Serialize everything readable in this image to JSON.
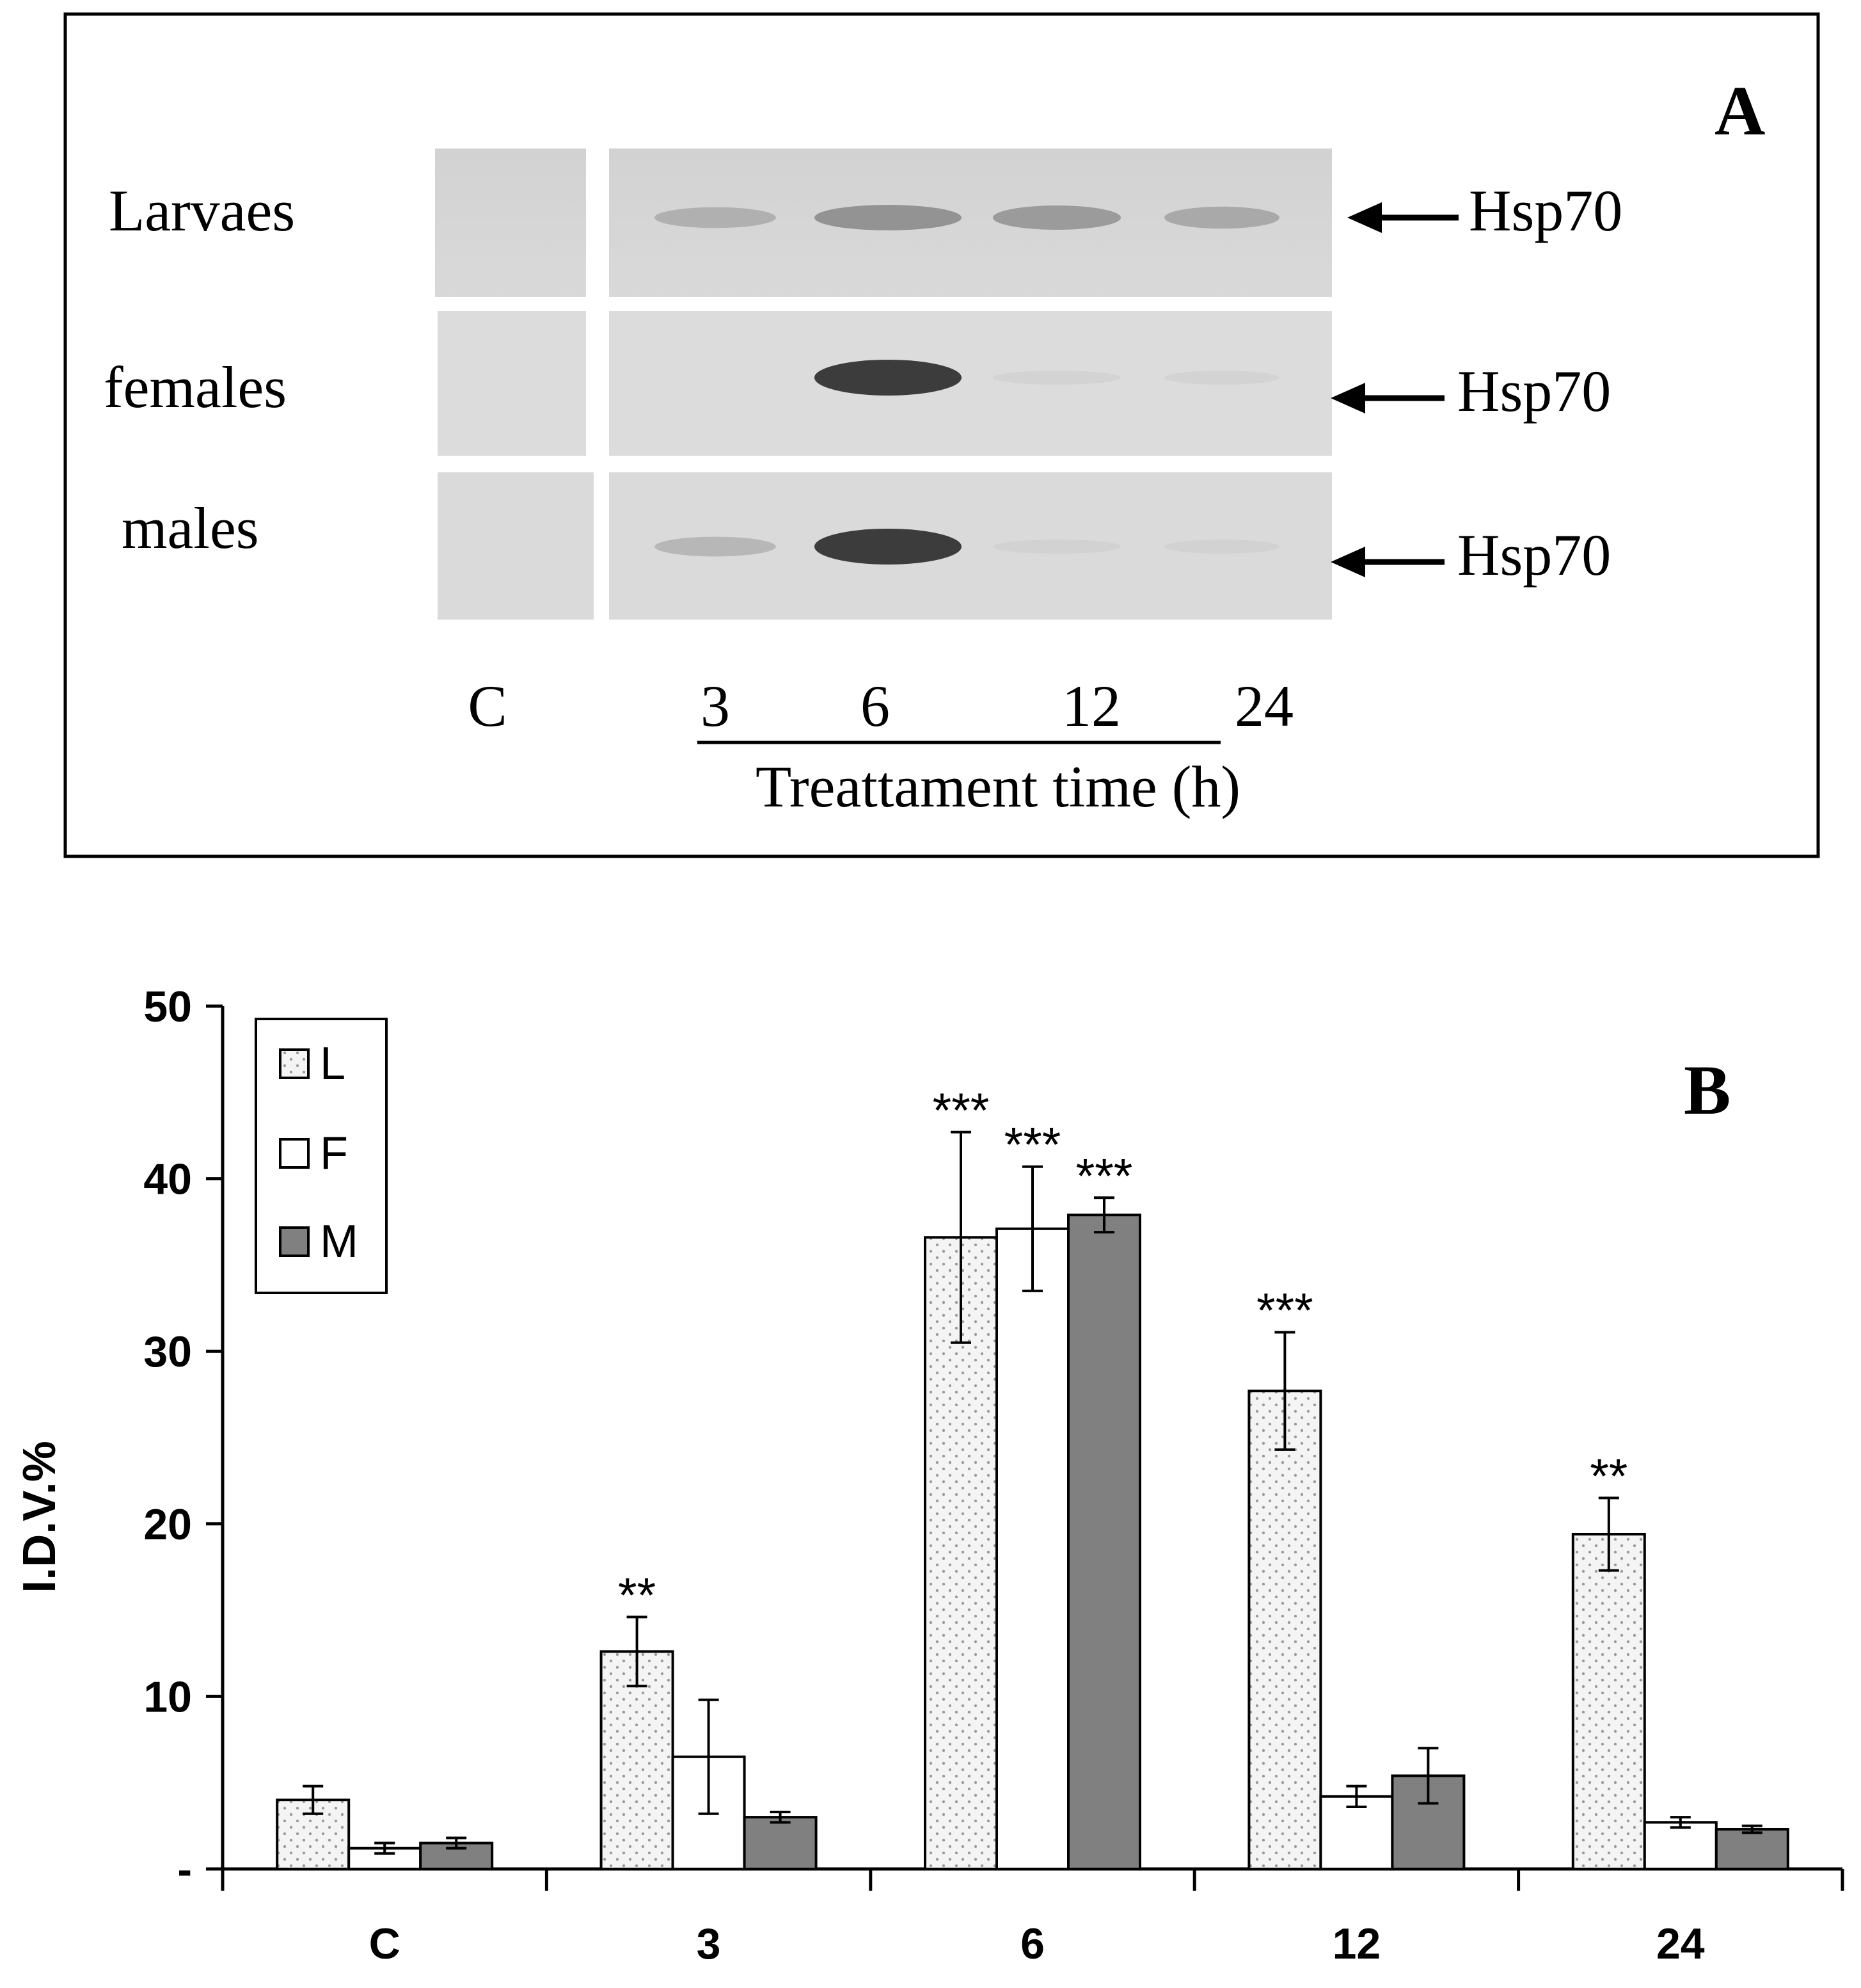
{
  "panel_a": {
    "label": "A",
    "rows": [
      {
        "name": "Larvaes",
        "marker": "Hsp70"
      },
      {
        "name": "females",
        "marker": "Hsp70"
      },
      {
        "name": "males",
        "marker": "Hsp70"
      }
    ],
    "lanes": [
      "C",
      "3",
      "6",
      "12",
      "24"
    ],
    "xlabel": "Treattament time (h)",
    "band_intensity": [
      [
        0,
        0.35,
        0.55,
        0.5,
        0.4
      ],
      [
        0,
        0,
        1,
        0.05,
        0.05
      ],
      [
        0,
        0.3,
        1,
        0.05,
        0.05
      ]
    ]
  },
  "chart_data": {
    "type": "bar",
    "panel_label": "B",
    "title": "",
    "xlabel": "",
    "ylabel": "I.D.V.%",
    "categories": [
      "C",
      "3",
      "6",
      "12",
      "24"
    ],
    "ylim": [
      0,
      50
    ],
    "yticks": [
      "-",
      "10",
      "20",
      "30",
      "40",
      "50"
    ],
    "legend_position": "top-left",
    "series": [
      {
        "name": "L",
        "pattern": "dotted",
        "color": "#f2f2f2",
        "values": [
          4.0,
          12.6,
          36.6,
          27.7,
          19.4
        ],
        "errors": [
          0.8,
          2.0,
          6.1,
          3.4,
          2.1
        ],
        "significance": [
          "",
          "**",
          "***",
          "***",
          "**"
        ]
      },
      {
        "name": "F",
        "pattern": "none",
        "color": "#ffffff",
        "values": [
          1.2,
          6.5,
          37.1,
          4.2,
          2.7
        ],
        "errors": [
          0.3,
          3.3,
          3.6,
          0.6,
          0.3
        ],
        "significance": [
          "",
          "",
          "***",
          "",
          ""
        ]
      },
      {
        "name": "M",
        "pattern": "none",
        "color": "#808080",
        "values": [
          1.5,
          3.0,
          37.9,
          5.4,
          2.3
        ],
        "errors": [
          0.3,
          0.3,
          1.0,
          1.6,
          0.2
        ],
        "significance": [
          "",
          "",
          "***",
          "",
          ""
        ]
      }
    ]
  }
}
